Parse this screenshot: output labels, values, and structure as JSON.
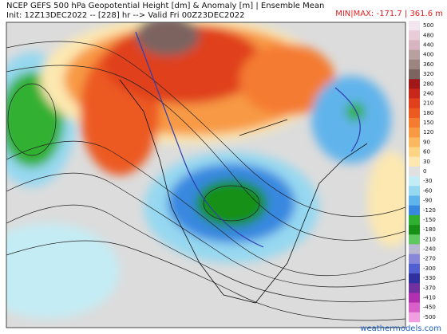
{
  "header": {
    "title": "NCEP GEFS 500 hPa Geopotential Height [dm] & Anomaly [m] | Ensemble Mean",
    "subtitle": "Init: 12Z13DEC2022 -- [228] hr --> Valid Fri 00Z23DEC2022",
    "minmax": "MIN|MAX: -171.7 | 361.6 m"
  },
  "colorbar": {
    "labels": [
      "500",
      "480",
      "440",
      "400",
      "360",
      "320",
      "280",
      "240",
      "210",
      "180",
      "150",
      "120",
      "90",
      "60",
      "30",
      "0",
      "-30",
      "-60",
      "-90",
      "-120",
      "-150",
      "-180",
      "-210",
      "-240",
      "-270",
      "-300",
      "-330",
      "-370",
      "-410",
      "-450",
      "-500"
    ],
    "colors": [
      "#f4e6ee",
      "#e8ccd8",
      "#d8b4c0",
      "#b8a0a0",
      "#9c8480",
      "#7c6460",
      "#a01818",
      "#c8281c",
      "#e0401c",
      "#ec5a22",
      "#f47c30",
      "#f89a44",
      "#fab860",
      "#fcd484",
      "#fce8b0",
      "#e0e0e0",
      "#c4ecf4",
      "#96d8f0",
      "#60b4ec",
      "#3888e0",
      "#30b030",
      "#189018",
      "#60c860",
      "#b8b8d0",
      "#8888d8",
      "#5060d0",
      "#3030a0",
      "#7030a0",
      "#b030b0",
      "#d860c8",
      "#f0a0e0"
    ]
  },
  "footer": {
    "credit": "weathermodels.com"
  }
}
